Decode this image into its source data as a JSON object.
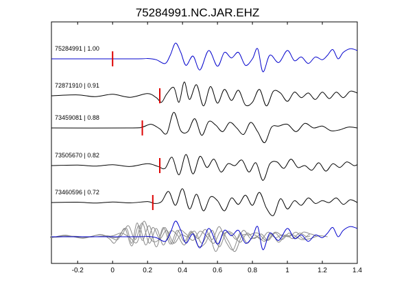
{
  "chart_data": {
    "type": "line",
    "title": "75284991.NC.JAR.EHZ",
    "xlabel": "",
    "ylabel": "",
    "xlim": [
      -0.35,
      1.4
    ],
    "xticks": [
      -0.2,
      0,
      0.2,
      0.4,
      0.6,
      0.8,
      1,
      1.2,
      1.4
    ],
    "xtick_labels": [
      "-0.2",
      "0",
      "0.2",
      "0.4",
      "0.6",
      "0.8",
      "1",
      "1.2",
      "1.4"
    ],
    "yticks_visible": false,
    "grid": false,
    "legend": "none",
    "colors": {
      "reference": "#0000cc",
      "other": "#000000",
      "overlay_other": "#8a8a8a",
      "pick_marker": "#dd0000"
    },
    "series": [
      {
        "label": "75284991 | 1.00",
        "pick_time": 0.0,
        "color": "blue",
        "x": [
          -0.35,
          0.13,
          0.2,
          0.25,
          0.3,
          0.33,
          0.36,
          0.39,
          0.42,
          0.46,
          0.5,
          0.55,
          0.6,
          0.64,
          0.68,
          0.72,
          0.76,
          0.8,
          0.83,
          0.86,
          0.9,
          0.95,
          1.0,
          1.04,
          1.08,
          1.12,
          1.16,
          1.2,
          1.23,
          1.26,
          1.29,
          1.32,
          1.36,
          1.4
        ],
        "y": [
          0,
          0,
          0.02,
          -0.05,
          -0.25,
          0.2,
          0.85,
          0.35,
          -0.35,
          0.15,
          -0.6,
          0.45,
          -0.4,
          0.35,
          0.05,
          0.35,
          -0.35,
          0.0,
          0.55,
          -0.7,
          0.2,
          -0.2,
          0.45,
          -0.1,
          0.1,
          -0.25,
          0.1,
          -0.05,
          0.2,
          0.5,
          0.0,
          0.35,
          0.55,
          0.45
        ]
      },
      {
        "label": "72871910 | 0.91",
        "pick_time": 0.27,
        "color": "black",
        "x": [
          -0.35,
          -0.2,
          -0.1,
          0.0,
          0.1,
          0.2,
          0.25,
          0.28,
          0.31,
          0.35,
          0.38,
          0.41,
          0.44,
          0.48,
          0.52,
          0.56,
          0.6,
          0.64,
          0.68,
          0.72,
          0.76,
          0.8,
          0.84,
          0.88,
          0.92,
          0.96,
          1.0,
          1.04,
          1.08,
          1.12,
          1.16,
          1.2,
          1.24,
          1.28,
          1.32,
          1.36,
          1.4
        ],
        "y": [
          0.0,
          0.05,
          -0.05,
          0.08,
          -0.08,
          0.12,
          -0.1,
          -0.35,
          0.1,
          0.45,
          -0.35,
          0.75,
          -0.2,
          0.6,
          -0.55,
          0.5,
          -0.4,
          0.35,
          -0.25,
          0.3,
          -0.5,
          -0.35,
          0.35,
          -0.55,
          0.25,
          0.15,
          -0.3,
          0.2,
          -0.1,
          0.15,
          -0.2,
          0.2,
          -0.15,
          0.2,
          -0.1,
          0.25,
          0.15
        ]
      },
      {
        "label": "73459081 | 0.88",
        "pick_time": 0.17,
        "color": "black",
        "x": [
          -0.35,
          0.1,
          0.17,
          0.22,
          0.27,
          0.31,
          0.35,
          0.39,
          0.43,
          0.47,
          0.51,
          0.55,
          0.59,
          0.63,
          0.67,
          0.71,
          0.75,
          0.79,
          0.83,
          0.87,
          0.91,
          0.95,
          1.0,
          1.05,
          1.1,
          1.15,
          1.2,
          1.25,
          1.3,
          1.35,
          1.4
        ],
        "y": [
          0,
          0,
          0.05,
          0.2,
          -0.05,
          -0.3,
          0.85,
          -0.15,
          -0.2,
          0.5,
          -0.4,
          0.35,
          0.15,
          -0.2,
          0.3,
          0.0,
          -0.35,
          0.3,
          -0.2,
          -0.8,
          0.05,
          0.1,
          0.2,
          -0.2,
          0.25,
          0.0,
          0.1,
          -0.15,
          -0.1,
          0.05,
          0.0
        ]
      },
      {
        "label": "73505670 | 0.82",
        "pick_time": 0.27,
        "color": "black",
        "x": [
          -0.35,
          -0.2,
          -0.1,
          0.0,
          0.1,
          0.2,
          0.26,
          0.3,
          0.34,
          0.38,
          0.42,
          0.46,
          0.5,
          0.54,
          0.58,
          0.62,
          0.66,
          0.7,
          0.74,
          0.78,
          0.82,
          0.86,
          0.9,
          0.94,
          0.98,
          1.02,
          1.06,
          1.1,
          1.14,
          1.18,
          1.22,
          1.26,
          1.3,
          1.34,
          1.38,
          1.4
        ],
        "y": [
          0,
          0.03,
          -0.03,
          0.05,
          -0.05,
          0.1,
          -0.05,
          -0.15,
          0.45,
          -0.5,
          0.6,
          -0.45,
          0.5,
          -0.1,
          0.35,
          -0.35,
          0.1,
          0.0,
          0.3,
          -0.35,
          0.15,
          -0.8,
          0.1,
          0.2,
          -0.15,
          0.35,
          -0.1,
          0.0,
          -0.25,
          0.15,
          -0.3,
          0.1,
          -0.1,
          0.2,
          0.0,
          0.05
        ]
      },
      {
        "label": "73460596 | 0.72",
        "pick_time": 0.23,
        "color": "black",
        "x": [
          -0.35,
          -0.2,
          -0.1,
          0.0,
          0.1,
          0.2,
          0.24,
          0.28,
          0.32,
          0.36,
          0.4,
          0.44,
          0.48,
          0.52,
          0.56,
          0.6,
          0.64,
          0.68,
          0.72,
          0.76,
          0.8,
          0.84,
          0.88,
          0.92,
          0.96,
          1.0,
          1.04,
          1.08,
          1.12,
          1.16,
          1.2,
          1.24,
          1.28,
          1.32,
          1.36,
          1.4
        ],
        "y": [
          0,
          0.02,
          -0.03,
          0.03,
          -0.02,
          0.05,
          -0.05,
          0.05,
          0.6,
          -0.15,
          0.75,
          -0.35,
          0.45,
          -0.45,
          0.3,
          0.1,
          -0.45,
          0.25,
          -0.1,
          0.4,
          -0.15,
          0.55,
          -0.3,
          -0.7,
          0.2,
          -0.35,
          0.1,
          -0.15,
          0.25,
          -0.05,
          0.1,
          0.0,
          0.25,
          -0.1,
          0.15,
          0.0
        ]
      }
    ]
  }
}
